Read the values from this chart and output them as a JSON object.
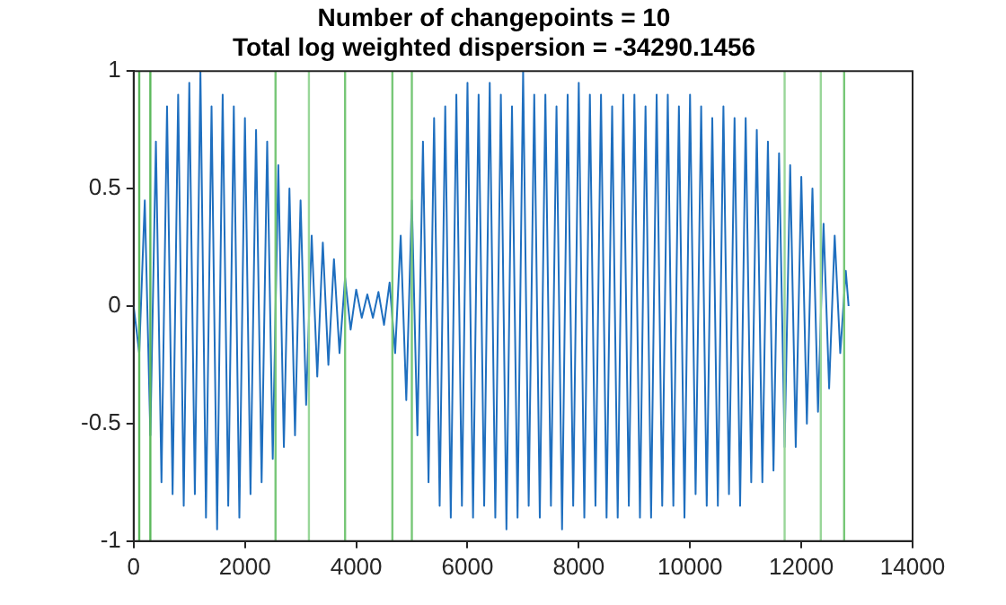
{
  "chart_data": {
    "type": "line",
    "title": "Number of changepoints = 10",
    "subtitle": "Total log weighted dispersion = -34290.1456",
    "x": [
      0,
      100,
      200,
      300,
      400,
      500,
      600,
      700,
      800,
      900,
      1000,
      1100,
      1200,
      1300,
      1400,
      1500,
      1600,
      1700,
      1800,
      1900,
      2000,
      2100,
      2200,
      2300,
      2400,
      2500,
      2600,
      2700,
      2800,
      2900,
      3000,
      3100,
      3200,
      3300,
      3400,
      3500,
      3600,
      3700,
      3800,
      3900,
      4000,
      4100,
      4200,
      4300,
      4400,
      4500,
      4600,
      4700,
      4800,
      4900,
      5000,
      5100,
      5200,
      5300,
      5400,
      5500,
      5600,
      5700,
      5800,
      5900,
      6000,
      6100,
      6200,
      6300,
      6400,
      6500,
      6600,
      6700,
      6800,
      6900,
      7000,
      7100,
      7200,
      7300,
      7400,
      7500,
      7600,
      7700,
      7800,
      7900,
      8000,
      8100,
      8200,
      8300,
      8400,
      8500,
      8600,
      8700,
      8800,
      8900,
      9000,
      9100,
      9200,
      9300,
      9400,
      9500,
      9600,
      9700,
      9800,
      9900,
      10000,
      10100,
      10200,
      10300,
      10400,
      10500,
      10600,
      10700,
      10800,
      10900,
      11000,
      11100,
      11200,
      11300,
      11400,
      11500,
      11600,
      11700,
      11800,
      11900,
      12000,
      12100,
      12200,
      12300,
      12400,
      12500,
      12600,
      12700,
      12800,
      12850
    ],
    "series": [
      {
        "color": "#1f6fbf",
        "values": [
          0,
          -0.2,
          0.45,
          -0.55,
          0.7,
          -0.75,
          0.85,
          -0.8,
          0.9,
          -0.85,
          0.95,
          -0.8,
          1.0,
          -0.9,
          0.85,
          -0.95,
          0.9,
          -0.85,
          0.85,
          -0.9,
          0.8,
          -0.8,
          0.75,
          -0.75,
          0.7,
          -0.65,
          0.6,
          -0.6,
          0.5,
          -0.55,
          0.45,
          -0.42,
          0.3,
          -0.3,
          0.27,
          -0.25,
          0.2,
          -0.2,
          0.12,
          -0.1,
          0.07,
          -0.05,
          0.05,
          -0.05,
          0.06,
          -0.08,
          0.1,
          -0.2,
          0.3,
          -0.4,
          0.45,
          -0.55,
          0.7,
          -0.75,
          0.8,
          -0.85,
          0.85,
          -0.9,
          0.9,
          -0.85,
          0.95,
          -0.9,
          0.9,
          -0.85,
          0.95,
          -0.9,
          0.9,
          -0.95,
          0.85,
          -0.9,
          1.0,
          -0.85,
          0.9,
          -0.9,
          0.9,
          -0.85,
          0.85,
          -0.95,
          0.9,
          -0.85,
          0.95,
          -0.9,
          0.9,
          -0.85,
          0.9,
          -0.9,
          0.85,
          -0.9,
          0.9,
          -0.85,
          0.9,
          -0.9,
          0.85,
          -0.9,
          0.9,
          -0.85,
          0.9,
          -0.85,
          0.85,
          -0.9,
          0.9,
          -0.8,
          0.85,
          -0.85,
          0.8,
          -0.85,
          0.85,
          -0.8,
          0.8,
          -0.85,
          0.8,
          -0.75,
          0.75,
          -0.75,
          0.7,
          -0.7,
          0.65,
          -0.6,
          0.6,
          -0.6,
          0.55,
          -0.5,
          0.5,
          -0.45,
          0.35,
          -0.35,
          0.3,
          -0.2,
          0.15,
          0
        ]
      }
    ],
    "xlim": [
      0,
      14000
    ],
    "xticks": [
      0,
      2000,
      4000,
      6000,
      8000,
      10000,
      12000,
      14000
    ],
    "ylim": [
      -1,
      1
    ],
    "yticks": [
      -1,
      -0.5,
      0,
      0.5,
      1
    ],
    "grid": false,
    "legend": false,
    "marker": "none",
    "line_style": "solid",
    "ref_lines": [
      {
        "axis": "x",
        "value": 100,
        "color": "#5cb85c"
      },
      {
        "axis": "x",
        "value": 300,
        "color": "#5cb85c"
      },
      {
        "axis": "x",
        "value": 2550,
        "color": "#77c777"
      },
      {
        "axis": "x",
        "value": 3150,
        "color": "#99d699"
      },
      {
        "axis": "x",
        "value": 3800,
        "color": "#77c777"
      },
      {
        "axis": "x",
        "value": 4650,
        "color": "#77c777"
      },
      {
        "axis": "x",
        "value": 5000,
        "color": "#77c777"
      },
      {
        "axis": "x",
        "value": 11700,
        "color": "#99d699"
      },
      {
        "axis": "x",
        "value": 12350,
        "color": "#99d699"
      },
      {
        "axis": "x",
        "value": 12770,
        "color": "#77c777"
      }
    ]
  }
}
